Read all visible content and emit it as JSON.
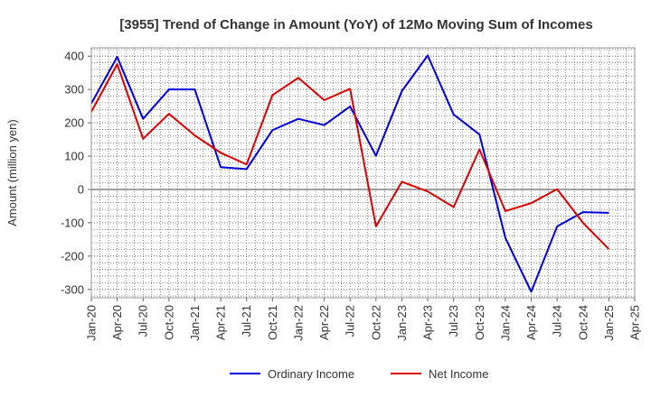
{
  "chart_data": {
    "type": "line",
    "title": "[3955]  Trend of Change in Amount (YoY) of 12Mo Moving Sum of Incomes",
    "ylabel": "Amount (million yen)",
    "xlabel": "",
    "ylim": [
      -325,
      425
    ],
    "yticks": [
      -300,
      -200,
      -100,
      0,
      100,
      200,
      300,
      400
    ],
    "categories": [
      "Jan-20",
      "Apr-20",
      "Jul-20",
      "Oct-20",
      "Jan-21",
      "Apr-21",
      "Jul-21",
      "Oct-21",
      "Jan-22",
      "Apr-22",
      "Jul-22",
      "Oct-22",
      "Jan-23",
      "Apr-23",
      "Jul-23",
      "Oct-23",
      "Jan-24",
      "Apr-24",
      "Jul-24",
      "Oct-24",
      "Jan-25",
      "Apr-25"
    ],
    "grid": true,
    "legend": "bottom",
    "series": [
      {
        "name": "Ordinary Income",
        "color": "#0000dd",
        "values": [
          258,
          398,
          212,
          300,
          300,
          67,
          61,
          178,
          212,
          193,
          249,
          101,
          295,
          402,
          225,
          165,
          -145,
          -307,
          -111,
          -68,
          -70,
          null
        ]
      },
      {
        "name": "Net Income",
        "color": "#dd0000",
        "values": [
          233,
          376,
          152,
          227,
          162,
          110,
          75,
          283,
          335,
          268,
          302,
          -111,
          23,
          -6,
          -53,
          120,
          -65,
          -41,
          1,
          -100,
          -179,
          null
        ]
      }
    ]
  }
}
